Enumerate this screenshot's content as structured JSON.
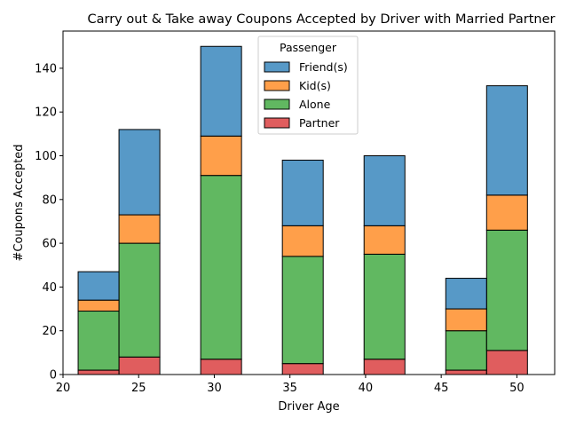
{
  "chart_data": {
    "type": "bar",
    "title": "Carry out & Take away Coupons Accepted by Driver with Married Partner",
    "xlabel": "Driver Age",
    "ylabel": "#Coupons Accepted",
    "xlim": [
      20,
      52.5
    ],
    "ylim": [
      0,
      157
    ],
    "x_ticks": [
      20,
      25,
      30,
      35,
      40,
      45,
      50
    ],
    "y_ticks": [
      0,
      20,
      40,
      60,
      80,
      100,
      120,
      140
    ],
    "bin_width": 2.7,
    "bins": [
      21.0,
      23.7,
      26.4,
      29.1,
      31.8,
      34.5,
      37.2,
      39.9,
      42.6,
      45.3,
      48.0
    ],
    "legend": {
      "title": "Passenger",
      "position": "upper-center",
      "entries": [
        "Friend(s)",
        "Kid(s)",
        "Alone",
        "Partner"
      ]
    },
    "series": [
      {
        "name": "Partner",
        "color": "#d62728",
        "values": [
          2,
          8,
          0,
          7,
          0,
          5,
          0,
          7,
          0,
          2,
          11
        ]
      },
      {
        "name": "Alone",
        "color": "#2ca02c",
        "values": [
          27,
          52,
          0,
          84,
          0,
          49,
          0,
          48,
          0,
          18,
          55
        ]
      },
      {
        "name": "Kid(s)",
        "color": "#ff7f0e",
        "values": [
          5,
          13,
          0,
          18,
          0,
          14,
          0,
          13,
          0,
          10,
          16
        ]
      },
      {
        "name": "Friend(s)",
        "color": "#1f77b4",
        "values": [
          13,
          39,
          0,
          41,
          0,
          30,
          0,
          32,
          0,
          14,
          50
        ]
      }
    ]
  }
}
